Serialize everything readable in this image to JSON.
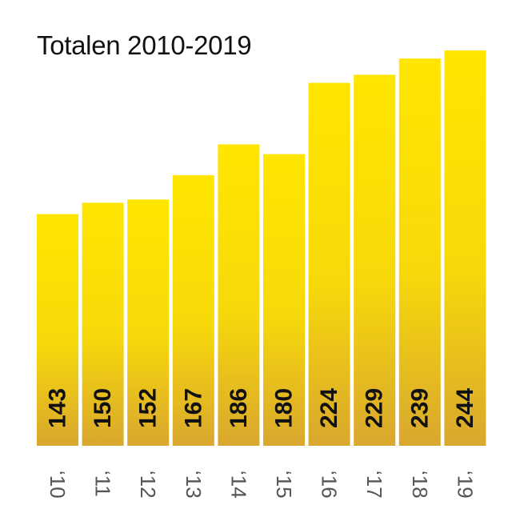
{
  "chart_data": {
    "type": "bar",
    "title": "Totalen 2010-2019",
    "categories": [
      "‘10",
      "‘11",
      "‘12",
      "‘13",
      "‘14",
      "‘15",
      "‘16",
      "‘17",
      "‘18",
      "‘19"
    ],
    "values": [
      143,
      150,
      152,
      167,
      186,
      180,
      224,
      229,
      239,
      244
    ],
    "data_labels": [
      "143",
      "150",
      "152",
      "167",
      "186",
      "180",
      "224",
      "229",
      "239",
      "244"
    ],
    "xlabel": "",
    "ylabel": "",
    "grid": false,
    "legend": "none",
    "colors": {
      "bar_top": "#ffe600",
      "bar_bottom": "#d9a72e",
      "label": "#111111",
      "tick": "#555555"
    }
  }
}
